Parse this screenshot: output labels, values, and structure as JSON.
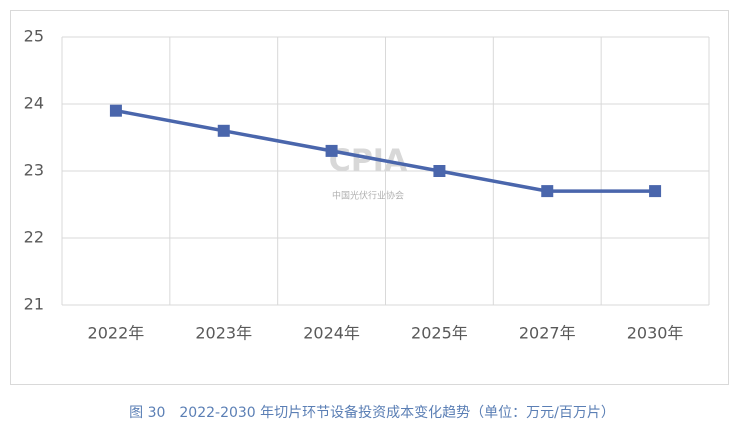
{
  "chart_data": {
    "type": "line",
    "categories": [
      "2022年",
      "2023年",
      "2024年",
      "2025年",
      "2027年",
      "2030年"
    ],
    "series": [
      {
        "color": "#4a66ac",
        "values": [
          23.9,
          23.6,
          23.3,
          23.0,
          22.7,
          22.7
        ]
      }
    ],
    "ylim": [
      21,
      25
    ],
    "yticks": [
      21,
      22,
      23,
      24,
      25
    ],
    "grid": true,
    "watermark": {
      "logo": "CPIA",
      "name": "中国光伏行业协会"
    },
    "caption": "图 30　2022-2030 年切片环节设备投资成本变化趋势（单位：万元/百万片）"
  }
}
